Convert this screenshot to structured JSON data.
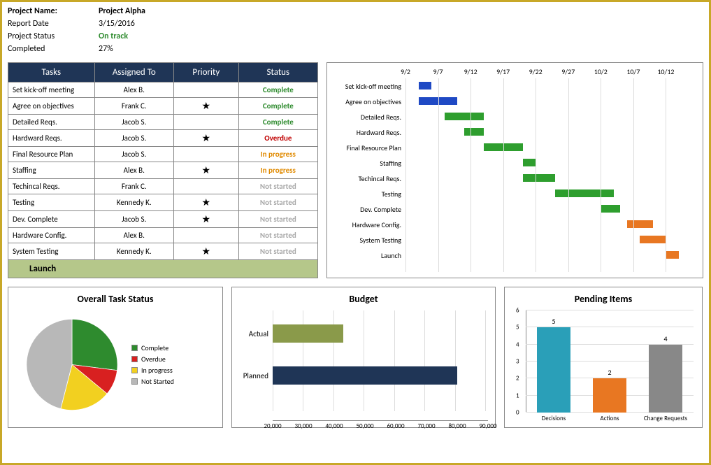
{
  "header": {
    "labels": {
      "project_name": "Project Name:",
      "report_date": "Report Date",
      "project_status": "Project Status",
      "completed": "Completed"
    },
    "project_name": "Project Alpha",
    "report_date": "3/15/2016",
    "project_status": "On track",
    "completed": "27%"
  },
  "task_table": {
    "columns": [
      "Tasks",
      "Assigned To",
      "Priority",
      "Status"
    ],
    "rows": [
      {
        "task": "Set kick-off meeting",
        "assigned": "Alex B.",
        "priority": false,
        "status": "Complete",
        "status_class": "status-complete"
      },
      {
        "task": "Agree on objectives",
        "assigned": "Frank C.",
        "priority": true,
        "status": "Complete",
        "status_class": "status-complete"
      },
      {
        "task": "Detailed Reqs.",
        "assigned": "Jacob S.",
        "priority": false,
        "status": "Complete",
        "status_class": "status-complete"
      },
      {
        "task": "Hardward Reqs.",
        "assigned": "Jacob S.",
        "priority": true,
        "status": "Overdue",
        "status_class": "status-overdue"
      },
      {
        "task": "Final Resource Plan",
        "assigned": "Jacob S.",
        "priority": false,
        "status": "In progress",
        "status_class": "status-inprogress"
      },
      {
        "task": "Staffing",
        "assigned": "Alex B.",
        "priority": true,
        "status": "In progress",
        "status_class": "status-inprogress"
      },
      {
        "task": "Techincal Reqs.",
        "assigned": "Frank C.",
        "priority": false,
        "status": "Not started",
        "status_class": "status-notstarted"
      },
      {
        "task": "Testing",
        "assigned": "Kennedy K.",
        "priority": true,
        "status": "Not started",
        "status_class": "status-notstarted"
      },
      {
        "task": "Dev. Complete",
        "assigned": "Jacob S.",
        "priority": true,
        "status": "Not started",
        "status_class": "status-notstarted"
      },
      {
        "task": "Hardware Config.",
        "assigned": "Alex B.",
        "priority": false,
        "status": "Not started",
        "status_class": "status-notstarted"
      },
      {
        "task": "System Testing",
        "assigned": "Kennedy K.",
        "priority": true,
        "status": "Not started",
        "status_class": "status-notstarted"
      }
    ],
    "launch_label": "Launch",
    "star_glyph": "★"
  },
  "gantt": {
    "x_ticks": [
      "9/2",
      "9/7",
      "9/12",
      "9/17",
      "9/22",
      "9/27",
      "10/2",
      "10/7",
      "10/12"
    ],
    "x_min": 0,
    "x_max": 45,
    "colors": {
      "blue": "#1f49c4",
      "green": "#2e9e2e",
      "orange": "#e87722"
    },
    "rows": [
      {
        "label": "Set kick-off meeting",
        "start": 2,
        "dur": 2,
        "color": "blue"
      },
      {
        "label": "Agree on objectives",
        "start": 2,
        "dur": 6,
        "color": "blue"
      },
      {
        "label": "Detailed Reqs.",
        "start": 6,
        "dur": 6,
        "color": "green"
      },
      {
        "label": "Hardward Reqs.",
        "start": 9,
        "dur": 3,
        "color": "green"
      },
      {
        "label": "Final Resource Plan",
        "start": 12,
        "dur": 6,
        "color": "green"
      },
      {
        "label": "Staffing",
        "start": 18,
        "dur": 2,
        "color": "green"
      },
      {
        "label": "Techincal Reqs.",
        "start": 18,
        "dur": 5,
        "color": "green"
      },
      {
        "label": "Testing",
        "start": 23,
        "dur": 9,
        "color": "green"
      },
      {
        "label": "Dev. Complete",
        "start": 30,
        "dur": 3,
        "color": "green"
      },
      {
        "label": "Hardware Config.",
        "start": 34,
        "dur": 4,
        "color": "orange"
      },
      {
        "label": "System Testing",
        "start": 36,
        "dur": 4,
        "color": "orange"
      },
      {
        "label": "Launch",
        "start": 40,
        "dur": 2,
        "color": "orange"
      }
    ]
  },
  "pie": {
    "title": "Overall Task Status",
    "slices": [
      {
        "label": "Complete",
        "value": 27,
        "color": "#2e8b2e"
      },
      {
        "label": "Overdue",
        "value": 9,
        "color": "#d82020"
      },
      {
        "label": "In progress",
        "value": 18,
        "color": "#f2d020"
      },
      {
        "label": "Not Started",
        "value": 46,
        "color": "#b8b8b8"
      }
    ]
  },
  "budget": {
    "title": "Budget",
    "x_min": 20000,
    "x_max": 90000,
    "x_step": 10000,
    "ticks": [
      "20,000",
      "30,000",
      "40,000",
      "50,000",
      "60,000",
      "70,000",
      "80,000",
      "90,000"
    ],
    "bars": [
      {
        "label": "Actual",
        "value": 43000,
        "color": "#8a9a4a"
      },
      {
        "label": "Planned",
        "value": 80000,
        "color": "#1f3556"
      }
    ]
  },
  "pending": {
    "title": "Pending Items",
    "y_min": 0,
    "y_max": 6,
    "y_step": 1,
    "bars": [
      {
        "label": "Decisions",
        "value": 5,
        "color": "#2a9fb8"
      },
      {
        "label": "Actions",
        "value": 2,
        "color": "#e87722"
      },
      {
        "label": "Change Requests",
        "value": 4,
        "color": "#888888"
      }
    ]
  }
}
